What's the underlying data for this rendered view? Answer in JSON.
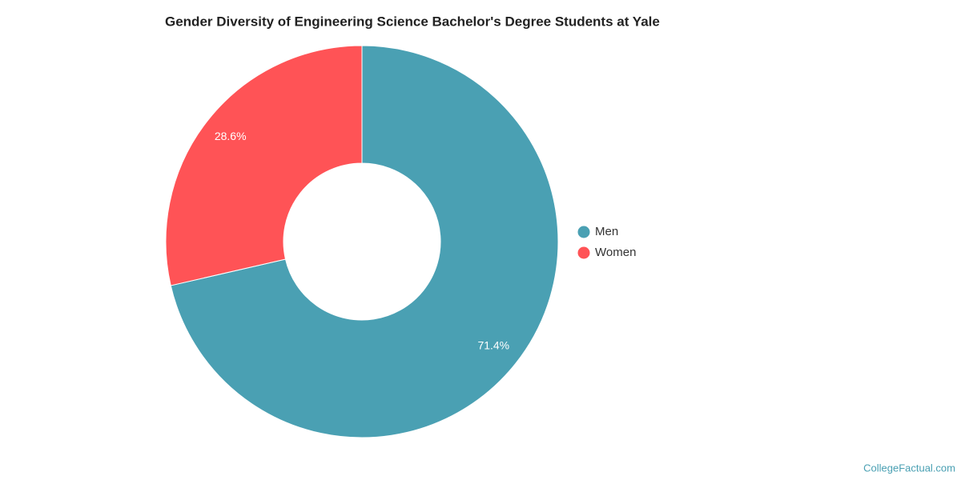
{
  "chart_data": {
    "type": "donut",
    "title": "Gender Diversity of Engineering Science Bachelor's Degree Students at Yale",
    "categories": [
      "Men",
      "Women"
    ],
    "values": [
      71.4,
      28.6
    ],
    "value_labels": [
      "71.4%",
      "28.6%"
    ],
    "colors": [
      "#4aa0b3",
      "#ff5356"
    ],
    "legend": "right",
    "credit": "CollegeFactual.com"
  }
}
